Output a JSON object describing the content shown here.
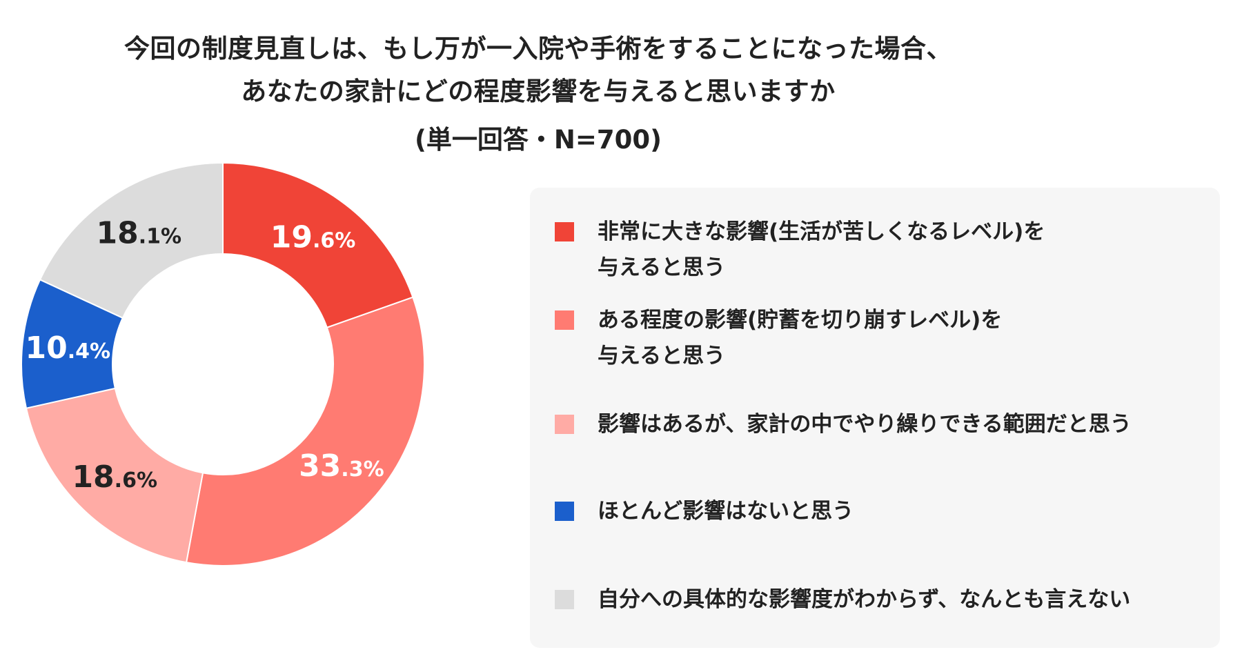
{
  "title": {
    "line1": "今回の制度見直しは、もし万が一入院や手術をすることになった場合、",
    "line2": "あなたの家計にどの程度影響を与えると思いますか",
    "subtitle": "(単一回答・N=700)"
  },
  "chart_data": {
    "type": "pie",
    "donut": true,
    "title": "今回の制度見直しは、もし万が一入院や手術をすることになった場合、あなたの家計にどの程度影響を与えると思いますか",
    "subtitle": "(単一回答・N=700)",
    "legend_position": "right",
    "slices": [
      {
        "label": "非常に大きな影響(生活が苦しくなるレベル)を与えると思う",
        "legend_lines": [
          "非常に大きな影響(生活が苦しくなるレベル)を",
          "与えると思う"
        ],
        "value": 19.6,
        "label_int": "19",
        "label_dec": ".6%",
        "color": "#f04437",
        "label_color": "#ffffff"
      },
      {
        "label": "ある程度の影響(貯蓄を切り崩すレベル)を与えると思う",
        "legend_lines": [
          "ある程度の影響(貯蓄を切り崩すレベル)を",
          "与えると思う"
        ],
        "value": 33.3,
        "label_int": "33",
        "label_dec": ".3%",
        "color": "#ff7b72",
        "label_color": "#ffffff"
      },
      {
        "label": "影響はあるが、家計の中でやり繰りできる範囲だと思う",
        "legend_lines": [
          "影響はあるが、家計の中でやり繰りできる範囲だと思う"
        ],
        "value": 18.6,
        "label_int": "18",
        "label_dec": ".6%",
        "color": "#ffaba5",
        "label_color": "#222222"
      },
      {
        "label": "ほとんど影響はないと思う",
        "legend_lines": [
          "ほとんど影響はないと思う"
        ],
        "value": 10.4,
        "label_int": "10",
        "label_dec": ".4%",
        "color": "#1b5fcc",
        "label_color": "#ffffff"
      },
      {
        "label": "自分への具体的な影響度がわからず、なんとも言えない",
        "legend_lines": [
          "自分への具体的な影響度がわからず、なんとも言えない"
        ],
        "value": 18.1,
        "label_int": "18",
        "label_dec": ".1%",
        "color": "#dcdcdc",
        "label_color": "#222222"
      }
    ]
  }
}
